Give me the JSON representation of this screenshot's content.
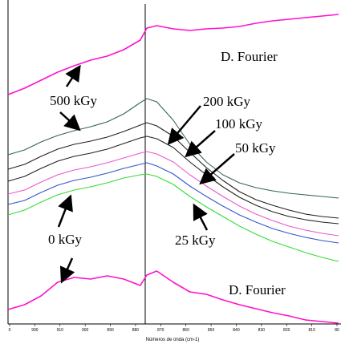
{
  "chart_data": {
    "type": "line",
    "title": "",
    "xlabel": "Números de onda (cm-1)",
    "ylabel": "",
    "x_ticks": [
      "0",
      "900",
      "910",
      "900",
      "890",
      "880",
      "870",
      "860",
      "850",
      "840",
      "830",
      "820",
      "810",
      "80"
    ],
    "grid": false,
    "x": [
      0,
      0.05,
      0.1,
      0.15,
      0.2,
      0.25,
      0.3,
      0.35,
      0.4,
      0.42,
      0.45,
      0.5,
      0.55,
      0.6,
      0.65,
      0.7,
      0.75,
      0.8,
      0.85,
      0.9,
      0.95,
      1.0
    ],
    "series": [
      {
        "name": "0 kGy",
        "color": "#33dd33",
        "values": [
          268,
          262,
          252,
          243,
          237,
          233,
          228,
          222,
          218,
          217,
          220,
          230,
          245,
          258,
          270,
          282,
          292,
          301,
          308,
          315,
          321,
          326
        ]
      },
      {
        "name": "25 kGy",
        "color": "#3355cc",
        "values": [
          255,
          250,
          240,
          231,
          225,
          221,
          216,
          210,
          205,
          203,
          207,
          217,
          232,
          245,
          257,
          268,
          277,
          285,
          291,
          296,
          300,
          303
        ]
      },
      {
        "name": "50 kGy",
        "color": "#ee55cc",
        "values": [
          242,
          237,
          227,
          218,
          212,
          208,
          203,
          197,
          191,
          189,
          192,
          202,
          218,
          232,
          245,
          257,
          267,
          275,
          282,
          287,
          291,
          294
        ]
      },
      {
        "name": "100 kGy",
        "color": "#222222",
        "values": [
          226,
          220,
          210,
          201,
          195,
          191,
          186,
          179,
          172,
          170,
          173,
          184,
          202,
          218,
          233,
          246,
          256,
          264,
          270,
          274,
          277,
          279
        ]
      },
      {
        "name": "200 kGy",
        "color": "#222222",
        "values": [
          211,
          205,
          195,
          186,
          180,
          176,
          171,
          164,
          156,
          153,
          157,
          170,
          190,
          209,
          225,
          239,
          249,
          256,
          262,
          267,
          270,
          272
        ]
      },
      {
        "name": "500 kGy",
        "color": "#336655",
        "values": [
          193,
          187,
          177,
          169,
          163,
          158,
          152,
          142,
          128,
          123,
          127,
          150,
          180,
          202,
          218,
          228,
          234,
          238,
          241,
          243,
          245,
          247
        ]
      },
      {
        "name": "D. Fourier",
        "color": "#ff11cc",
        "values": [
          118,
          110,
          100,
          90,
          82,
          75,
          70,
          62,
          50,
          35,
          32,
          36,
          38,
          36,
          35,
          33,
          29,
          26,
          24,
          22,
          20,
          18
        ]
      },
      {
        "name": "D. Fourier",
        "color": "#ff11cc",
        "values": [
          386,
          380,
          369,
          352,
          346,
          348,
          344,
          348,
          356,
          343,
          338,
          352,
          364,
          367,
          374,
          380,
          385,
          390,
          394,
          399,
          401,
          403
        ]
      }
    ],
    "annotations": [
      "D. Fourier",
      "500 kGy",
      "200 kGy",
      "100 kGy",
      "50 kGy",
      "0 kGy",
      "25 kGy",
      "D. Fourier"
    ]
  }
}
